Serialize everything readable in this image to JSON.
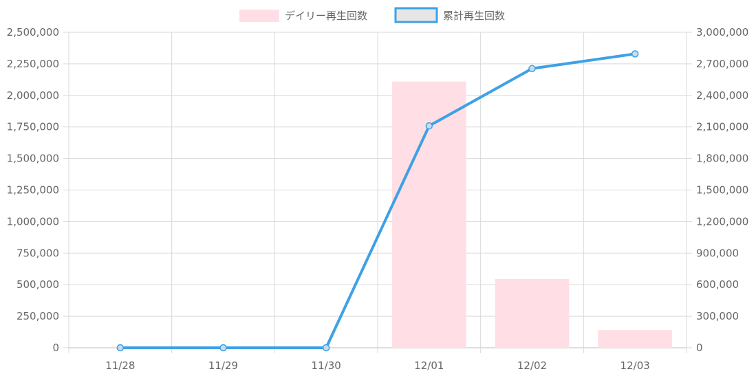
{
  "chart_data": {
    "type": "bar",
    "categories": [
      "11/28",
      "11/29",
      "11/30",
      "12/01",
      "12/02",
      "12/03"
    ],
    "series": [
      {
        "name": "デイリー再生回数",
        "type": "bar",
        "axis": "left",
        "values": [
          0,
          0,
          0,
          2110000,
          545000,
          140000
        ],
        "color": "#ffdfe5"
      },
      {
        "name": "累計再生回数",
        "type": "line",
        "axis": "right",
        "values": [
          0,
          0,
          0,
          2110000,
          2655000,
          2795000
        ],
        "color": "#3ea1e5"
      }
    ],
    "y_left": {
      "ylim": [
        0,
        2500000
      ],
      "ticks": [
        "0",
        "250,000",
        "500,000",
        "750,000",
        "1,000,000",
        "1,250,000",
        "1,500,000",
        "1,750,000",
        "2,000,000",
        "2,250,000",
        "2,500,000"
      ]
    },
    "y_right": {
      "ylim": [
        0,
        3000000
      ],
      "ticks": [
        "0",
        "300,000",
        "600,000",
        "900,000",
        "1,200,000",
        "1,500,000",
        "1,800,000",
        "2,100,000",
        "2,400,000",
        "2,700,000",
        "3,000,000"
      ]
    },
    "grid": true,
    "legend_position": "top-center",
    "title": "",
    "xlabel": "",
    "ylabel": ""
  }
}
